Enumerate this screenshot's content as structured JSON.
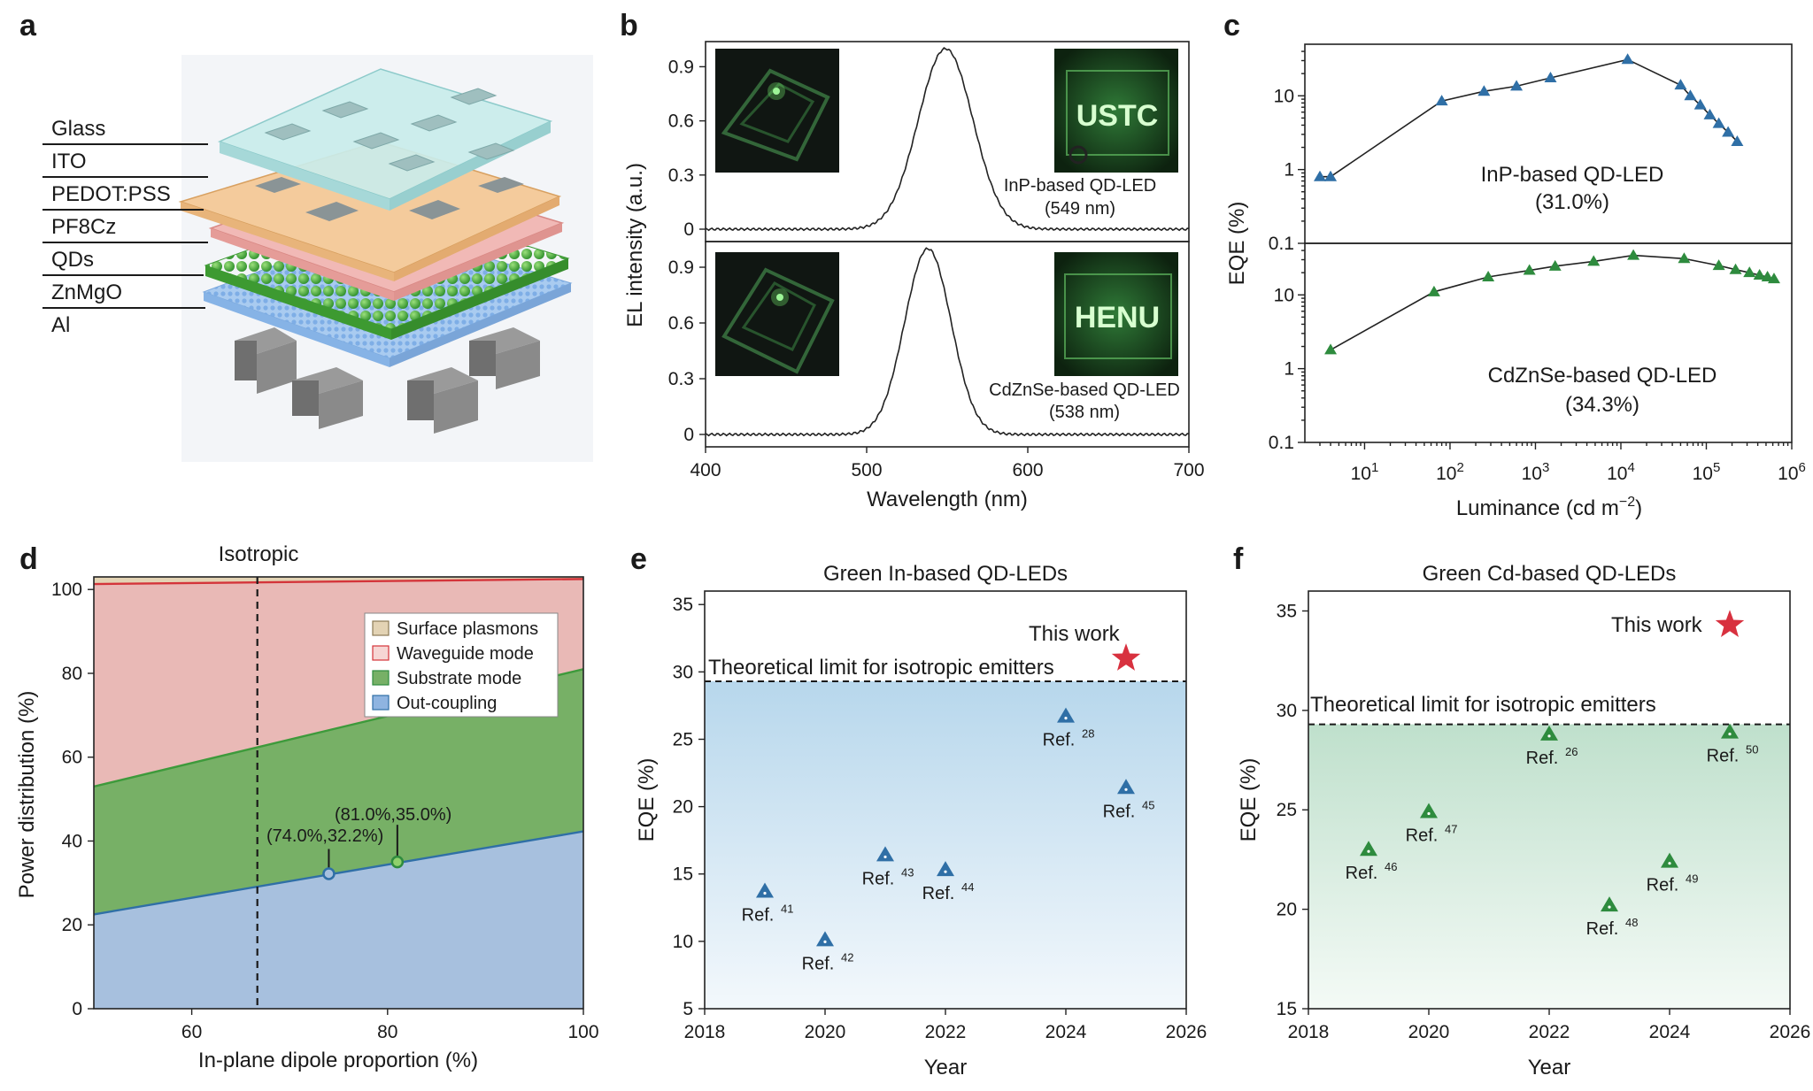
{
  "panels": {
    "a": {
      "label": "a",
      "layers": [
        "Glass",
        "ITO",
        "PEDOT:PSS",
        "PF8Cz",
        "QDs",
        "ZnMgO",
        "Al"
      ],
      "colors": {
        "glass": "#bfe4e4",
        "ito": "#f0c796",
        "pedot": "#f0b0ae",
        "qd": "#4caf3c",
        "znmgo": "#9cc2ea",
        "al": "#7d7d7d"
      }
    },
    "b": {
      "label": "b",
      "ylabel": "EL intensity (a.u.)",
      "xlabel": "Wavelength (nm)",
      "top_annotation": [
        "InP-based QD-LED",
        "(549 nm)"
      ],
      "bottom_annotation": [
        "CdZnSe-based QD-LED",
        "(538 nm)"
      ],
      "photo_top_text": "USTC",
      "photo_bottom_text": "HENU"
    },
    "c": {
      "label": "c",
      "ylabel": "EQE (%)",
      "xlabel": "Luminance (cd m",
      "xlabel_sup": "−2",
      "xlabel_end": ")",
      "top_annotation": [
        "InP-based QD-LED",
        "(31.0%)"
      ],
      "bottom_annotation": [
        "CdZnSe-based QD-LED",
        "(34.3%)"
      ]
    },
    "d": {
      "label": "d",
      "title": "Isotropic",
      "xlabel": "In-plane dipole proportion (%)",
      "ylabel": "Power distribution (%)",
      "point1": "(74.0%,32.2%)",
      "point2": "(81.0%,35.0%)",
      "legend": [
        "Surface plasmons",
        "Waveguide mode",
        "Substrate mode",
        "Out-coupling"
      ]
    },
    "e": {
      "label": "e",
      "title": "Green In-based QD-LEDs",
      "xlabel": "Year",
      "ylabel": "EQE (%)",
      "limit_text": "Theoretical limit for isotropic emitters",
      "this_work": "This work"
    },
    "f": {
      "label": "f",
      "title": "Green Cd-based QD-LEDs",
      "xlabel": "Year",
      "ylabel": "EQE (%)",
      "limit_text": "Theoretical limit for isotropic emitters",
      "this_work": "This work"
    }
  },
  "chart_data": [
    {
      "panel": "b",
      "type": "line",
      "xlim": [
        400,
        700
      ],
      "ylim": [
        0,
        1.0
      ],
      "xticks": [
        400,
        500,
        600,
        700
      ],
      "yticks": [
        0,
        0.3,
        0.6,
        0.9
      ],
      "series": [
        {
          "peak": 549,
          "fwhm": 40,
          "color": "#2f6fa6"
        },
        {
          "peak": 538,
          "fwhm": 34,
          "color": "#2e8b3e"
        }
      ]
    },
    {
      "panel": "c",
      "type": "line",
      "xscale": "log",
      "yscale": "log",
      "xlim": [
        2,
        1000000
      ],
      "ylim": [
        0.1,
        50
      ],
      "yticks": [
        "0.1",
        "1",
        "10"
      ],
      "series": [
        {
          "color": "#2f6fa6",
          "x": [
            3,
            4,
            80,
            250,
            600,
            1500,
            12000,
            50000,
            65000,
            85000,
            110000,
            140000,
            180000,
            230000
          ],
          "y": [
            0.8,
            0.8,
            8.5,
            11.5,
            13.5,
            17.5,
            31.0,
            14.0,
            10.0,
            7.5,
            5.5,
            4.2,
            3.2,
            2.4
          ]
        },
        {
          "color": "#2e8b3e",
          "x": [
            4,
            65,
            280,
            850,
            1700,
            4800,
            14000,
            55000,
            140000,
            220000,
            320000,
            420000,
            520000,
            620000
          ],
          "y": [
            1.8,
            11.0,
            17.5,
            21.5,
            24.5,
            28.5,
            34.3,
            31.0,
            25.0,
            22.0,
            20.0,
            18.5,
            17.5,
            16.5
          ]
        }
      ]
    },
    {
      "panel": "d",
      "type": "area",
      "xlim": [
        50,
        100
      ],
      "ylim": [
        0,
        103
      ],
      "xticks": [
        60,
        80,
        100
      ],
      "yticks": [
        0,
        20,
        40,
        60,
        80,
        100
      ],
      "isotropic_x": 66.7,
      "outcoupling": {
        "x": [
          50,
          100
        ],
        "y": [
          22.5,
          42.3
        ]
      },
      "substrate": {
        "x": [
          50,
          100
        ],
        "y": [
          53.0,
          81.0
        ]
      },
      "waveguide": {
        "x": [
          50,
          100
        ],
        "y": [
          101.3,
          102.5
        ]
      },
      "points": [
        {
          "x": 74.0,
          "y": 32.2
        },
        {
          "x": 81.0,
          "y": 35.0
        }
      ],
      "colors": {
        "outcoupling": "#a7c0de",
        "substrate": "#77b066",
        "waveguide": "#e9b9b6",
        "plasmons": "#e3d3b4"
      }
    },
    {
      "panel": "e",
      "type": "scatter",
      "xlim": [
        2018,
        2026
      ],
      "ylim": [
        5,
        36
      ],
      "xticks": [
        2018,
        2020,
        2022,
        2024,
        2026
      ],
      "yticks": [
        5,
        10,
        15,
        20,
        25,
        30,
        35
      ],
      "limit": 29.3,
      "points": [
        {
          "x": 2019,
          "y": 13.7,
          "ref": "41"
        },
        {
          "x": 2020,
          "y": 10.1,
          "ref": "42"
        },
        {
          "x": 2021,
          "y": 16.4,
          "ref": "43"
        },
        {
          "x": 2022,
          "y": 15.3,
          "ref": "44"
        },
        {
          "x": 2024,
          "y": 26.7,
          "ref": "28"
        },
        {
          "x": 2025,
          "y": 21.4,
          "ref": "45"
        }
      ],
      "this_work": {
        "x": 2025,
        "y": 31.0
      },
      "ref_prefix": "Ref.",
      "color": "#2f6fa6"
    },
    {
      "panel": "f",
      "type": "scatter",
      "xlim": [
        2018,
        2026
      ],
      "ylim": [
        15,
        36
      ],
      "xticks": [
        2018,
        2020,
        2022,
        2024,
        2026
      ],
      "yticks": [
        15,
        20,
        25,
        30,
        35
      ],
      "limit": 29.3,
      "points": [
        {
          "x": 2019,
          "y": 23.0,
          "ref": "46"
        },
        {
          "x": 2020,
          "y": 24.9,
          "ref": "47"
        },
        {
          "x": 2022,
          "y": 28.8,
          "ref": "26"
        },
        {
          "x": 2023,
          "y": 20.2,
          "ref": "48"
        },
        {
          "x": 2024,
          "y": 22.4,
          "ref": "49"
        },
        {
          "x": 2025,
          "y": 28.9,
          "ref": "50"
        }
      ],
      "this_work": {
        "x": 2025,
        "y": 34.3
      },
      "ref_prefix": "Ref.",
      "color": "#2e8b3e"
    }
  ]
}
